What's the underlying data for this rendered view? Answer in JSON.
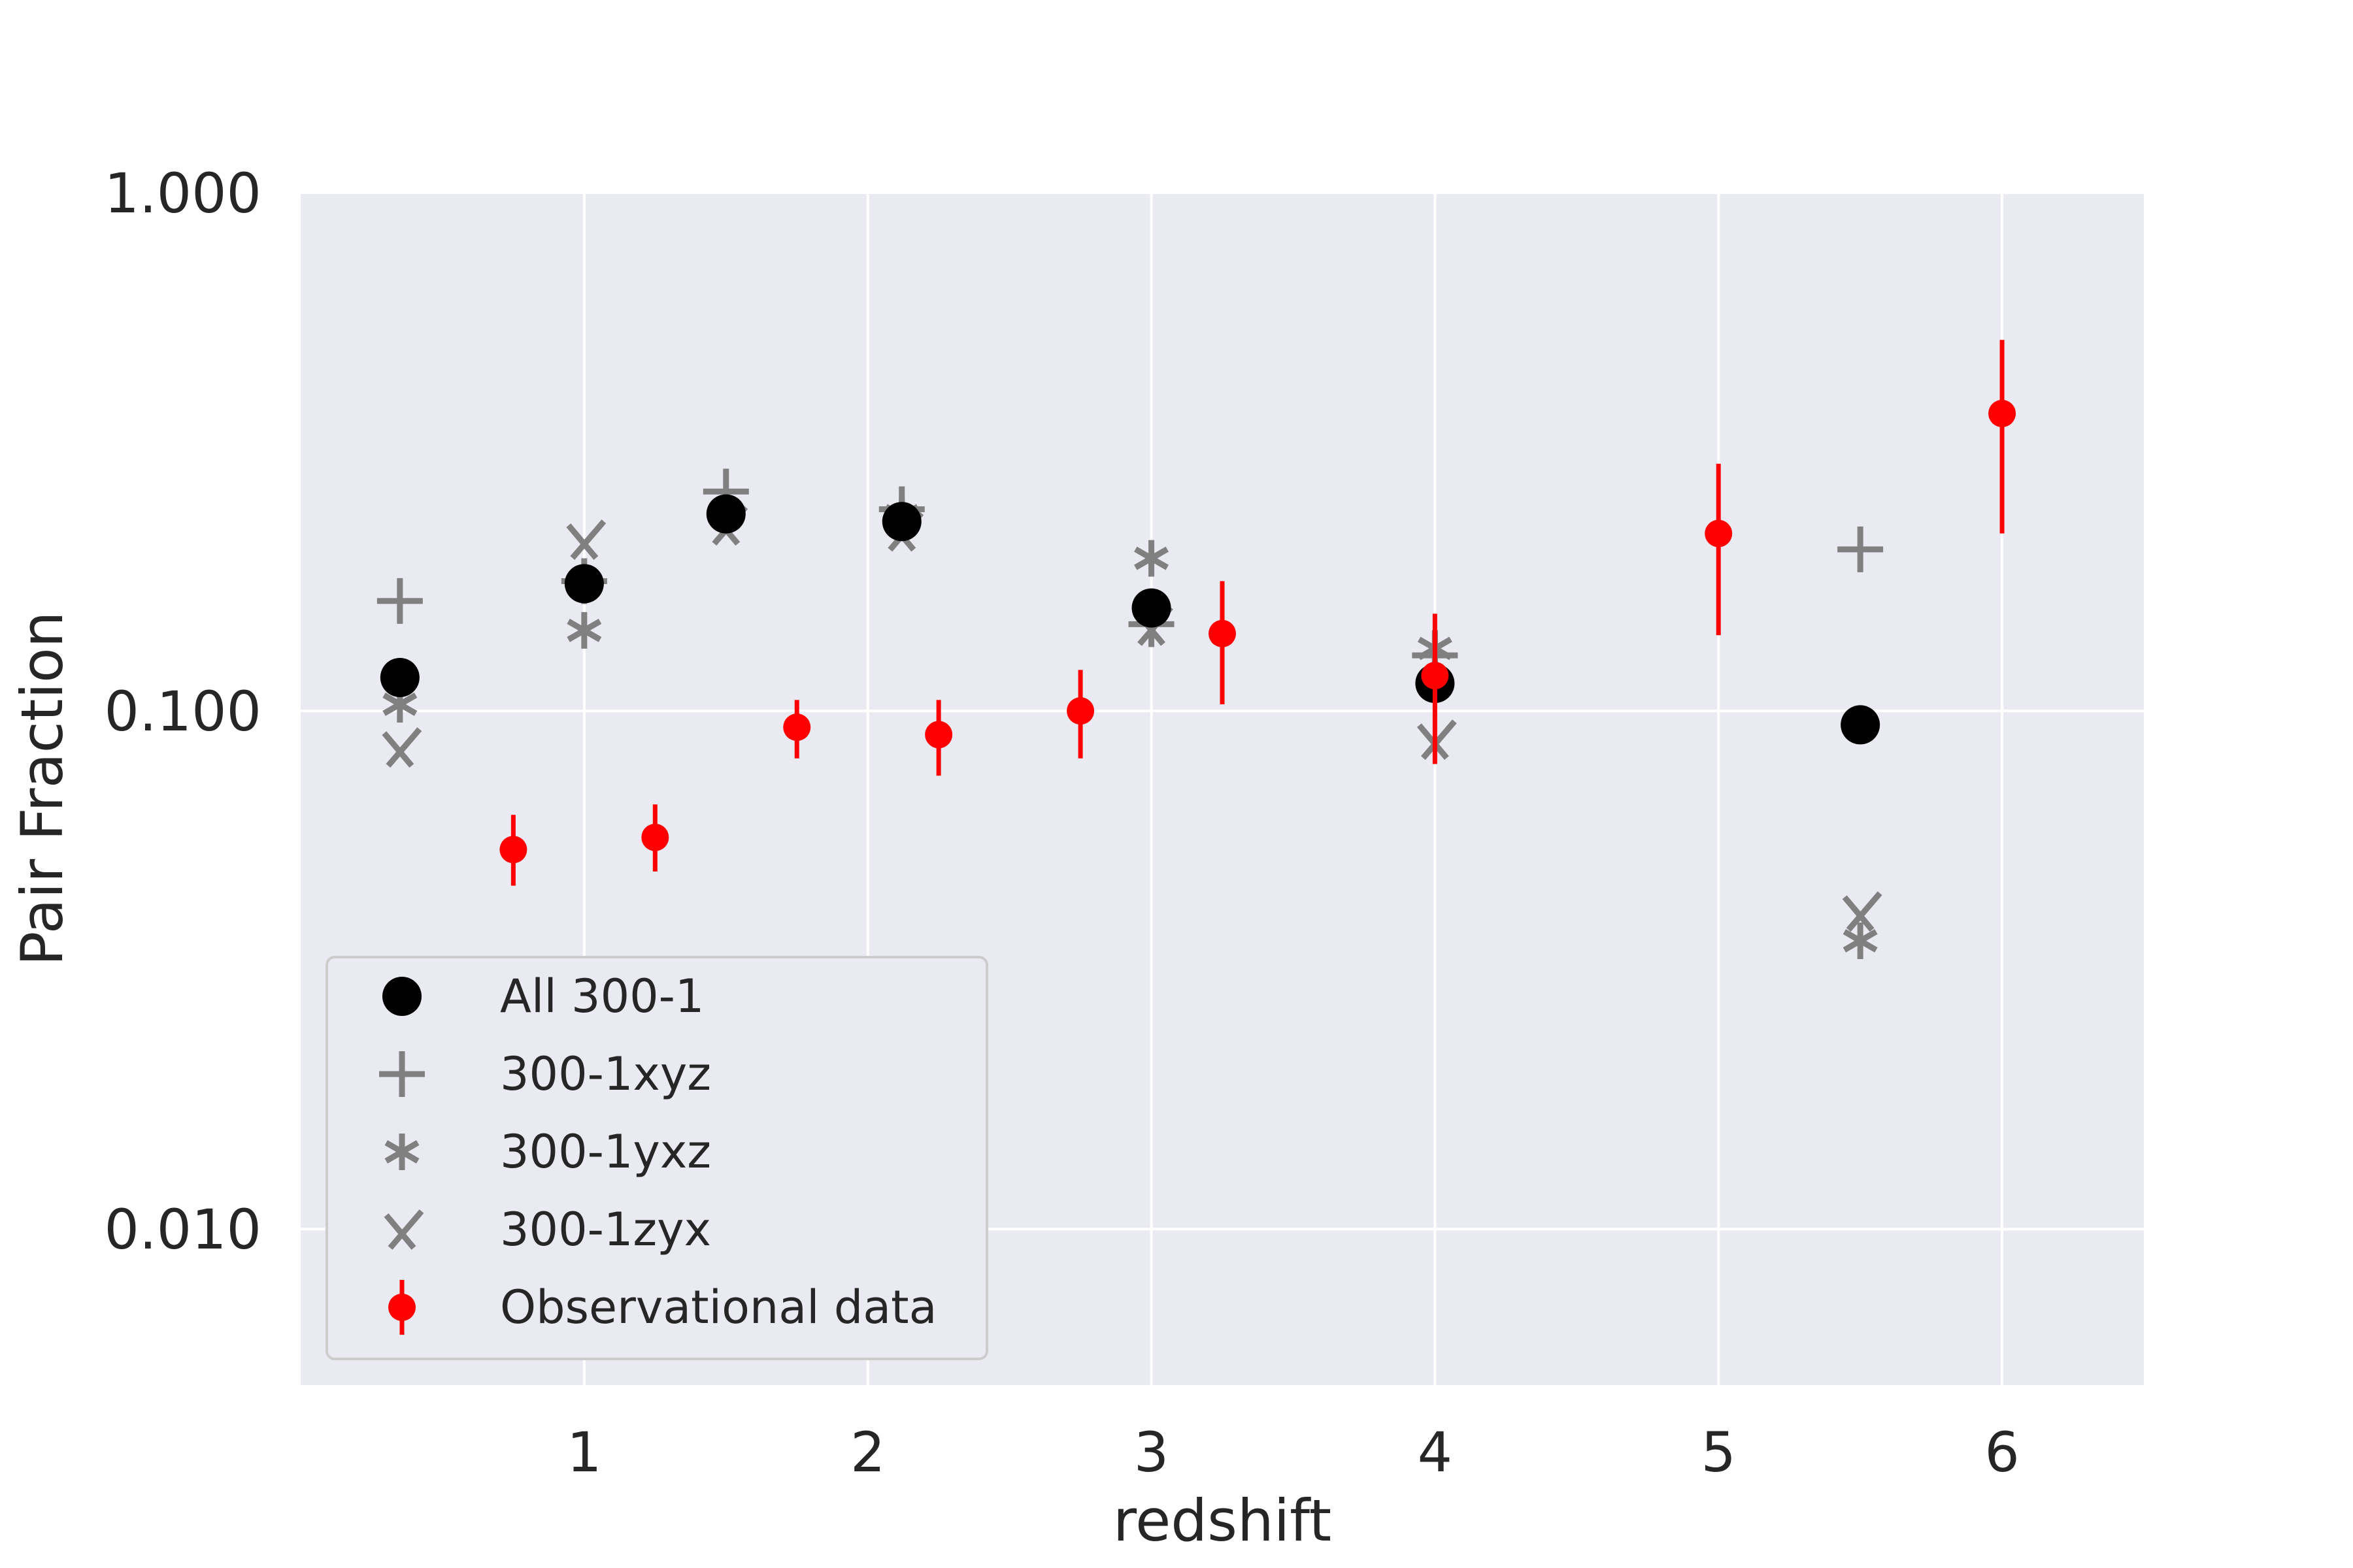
{
  "chart_data": {
    "type": "scatter",
    "title": "",
    "xlabel": "redshift",
    "ylabel": "Pair Fraction",
    "xlim": [
      0.0,
      6.5
    ],
    "ylim": [
      0.005,
      1.0
    ],
    "yscale": "log",
    "xticks": [
      1,
      2,
      3,
      4,
      5,
      6
    ],
    "xtick_labels": [
      "1",
      "2",
      "3",
      "4",
      "5",
      "6"
    ],
    "yticks": [
      0.01,
      0.1,
      1.0
    ],
    "ytick_labels": [
      "0.010",
      "0.100",
      "1.000"
    ],
    "grid": true,
    "legend_position": "lower-left",
    "background": "#eaeaf2",
    "series": [
      {
        "name": "All 300-1",
        "marker": "circle",
        "color": "#000000",
        "x": [
          0.35,
          1.0,
          1.5,
          2.12,
          3.0,
          4.0,
          5.5
        ],
        "y": [
          0.116,
          0.176,
          0.24,
          0.232,
          0.158,
          0.113,
          0.094
        ]
      },
      {
        "name": "300-1xyz",
        "marker": "plus",
        "color": "#808080",
        "x": [
          0.35,
          1.0,
          1.5,
          2.12,
          3.0,
          4.0,
          5.5
        ],
        "y": [
          0.163,
          0.178,
          0.265,
          0.245,
          0.147,
          0.128,
          0.205
        ]
      },
      {
        "name": "300-1yxz",
        "marker": "asterisk",
        "color": "#808080",
        "x": [
          0.35,
          1.0,
          1.5,
          2.12,
          3.0,
          4.0,
          5.5
        ],
        "y": [
          0.103,
          0.143,
          0.241,
          0.238,
          0.197,
          0.132,
          0.036
        ]
      },
      {
        "name": "300-1zyx",
        "marker": "x",
        "color": "#808080",
        "x": [
          0.35,
          1.0,
          1.5,
          2.12,
          3.0,
          4.0,
          5.5
        ],
        "y": [
          0.085,
          0.214,
          0.228,
          0.222,
          0.146,
          0.088,
          0.041
        ]
      },
      {
        "name": "Observational data",
        "marker": "circle-errorbar",
        "color": "#ff0000",
        "x": [
          0.75,
          1.25,
          1.75,
          2.25,
          2.75,
          3.25,
          4.0,
          5.0,
          6.0
        ],
        "y": [
          0.054,
          0.057,
          0.093,
          0.09,
          0.1,
          0.141,
          0.117,
          0.22,
          0.375
        ],
        "y_low": [
          0.046,
          0.049,
          0.081,
          0.075,
          0.081,
          0.103,
          0.079,
          0.14,
          0.22
        ],
        "y_high": [
          0.063,
          0.066,
          0.105,
          0.105,
          0.12,
          0.178,
          0.154,
          0.3,
          0.52
        ]
      }
    ]
  }
}
